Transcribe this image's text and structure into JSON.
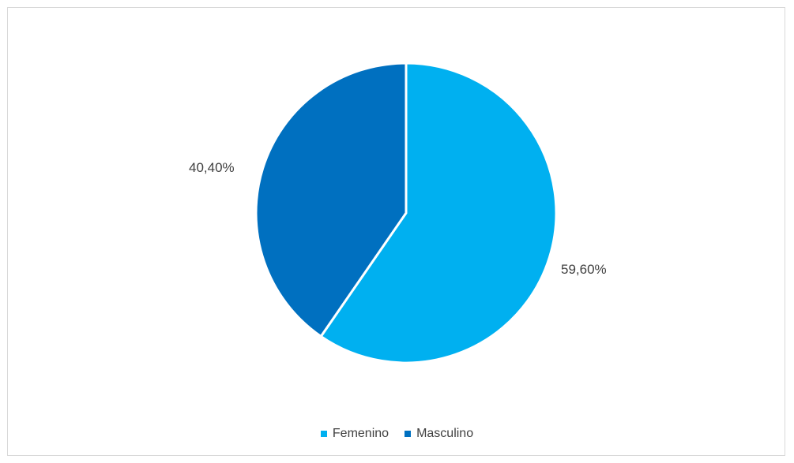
{
  "chart_data": {
    "type": "pie",
    "categories": [
      "Femenino",
      "Masculino"
    ],
    "values": [
      59.6,
      40.4
    ],
    "value_labels": [
      "59,60%",
      "40,40%"
    ],
    "colors": [
      "#00b0f0",
      "#0070c0"
    ],
    "title": "",
    "legend": "bottom"
  }
}
